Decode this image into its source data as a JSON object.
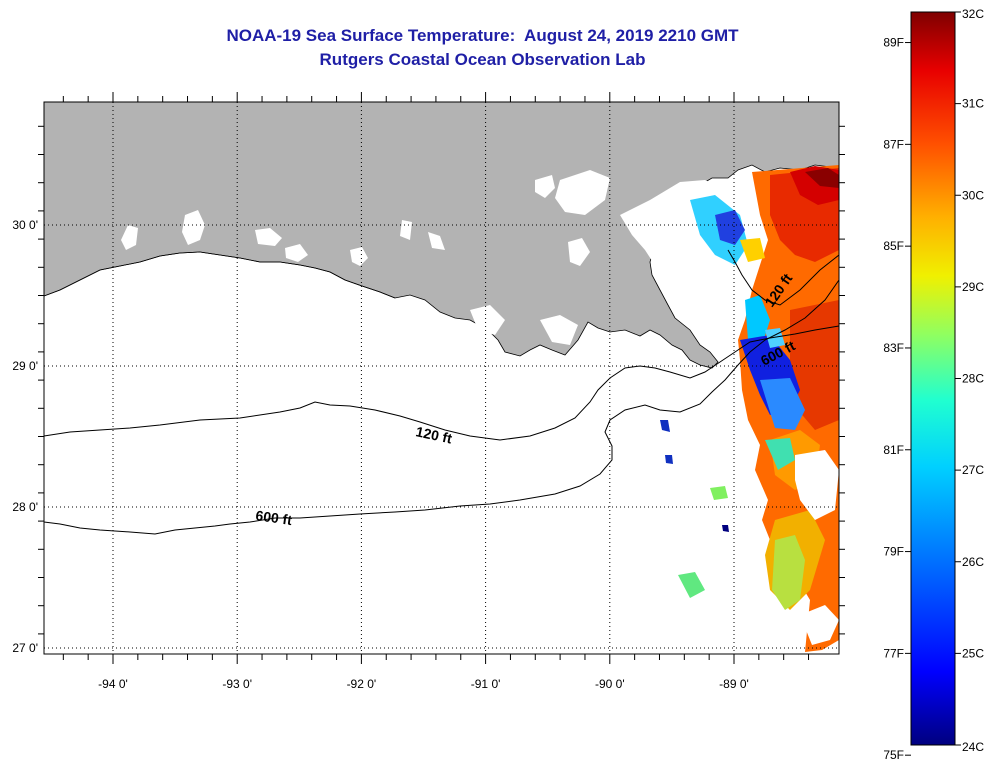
{
  "title": "NOAA-19 Sea Surface Temperature:  August 24, 2019 2210 GMT",
  "subtitle": "Rutgers Coastal Ocean Observation Lab",
  "map": {
    "lat_labels": [
      {
        "lat": 30,
        "label": "30 0'"
      },
      {
        "lat": 29,
        "label": "29 0'"
      },
      {
        "lat": 28,
        "label": "28 0'"
      },
      {
        "lat": 27,
        "label": "27 0'"
      }
    ],
    "lon_labels": [
      {
        "lon": -94,
        "label": "-94 0'"
      },
      {
        "lon": -93,
        "label": "-93 0'"
      },
      {
        "lon": -92,
        "label": "-92 0'"
      },
      {
        "lon": -91,
        "label": "-91 0'"
      },
      {
        "lon": -90,
        "label": "-90 0'"
      },
      {
        "lon": -89,
        "label": "-89 0'"
      }
    ],
    "contours": [
      {
        "depth": "120 ft"
      },
      {
        "depth": "600 ft"
      },
      {
        "depth": "120 ft"
      },
      {
        "depth": "600 ft"
      }
    ]
  },
  "colorbar": {
    "celsius": [
      {
        "value": 32,
        "label": "32C"
      },
      {
        "value": 31,
        "label": "31C"
      },
      {
        "value": 30,
        "label": "30C"
      },
      {
        "value": 29,
        "label": "29C"
      },
      {
        "value": 28,
        "label": "28C"
      },
      {
        "value": 27,
        "label": "27C"
      },
      {
        "value": 26,
        "label": "26C"
      },
      {
        "value": 25,
        "label": "25C"
      },
      {
        "value": 24,
        "label": "24C"
      }
    ],
    "fahrenheit": [
      {
        "value": 89,
        "label": "89F"
      },
      {
        "value": 87,
        "label": "87F"
      },
      {
        "value": 85,
        "label": "85F"
      },
      {
        "value": 83,
        "label": "83F"
      },
      {
        "value": 81,
        "label": "81F"
      },
      {
        "value": 79,
        "label": "79F"
      },
      {
        "value": 77,
        "label": "77F"
      },
      {
        "value": 75,
        "label": "75F"
      }
    ],
    "colors": [
      "#00007f",
      "#0000e6",
      "#0050ff",
      "#00a8ff",
      "#10f0e8",
      "#60ffa0",
      "#b0ff50",
      "#f8f000",
      "#ffa800",
      "#ff5000",
      "#e80000",
      "#7f0000"
    ]
  }
}
